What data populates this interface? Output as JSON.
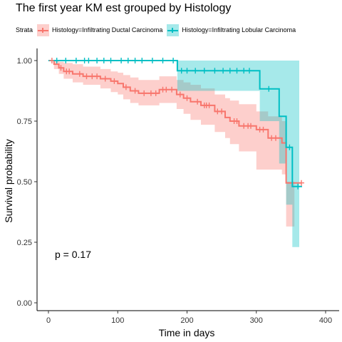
{
  "chart_data": {
    "type": "line",
    "title": "The first year KM est grouped by Histology",
    "xlabel": "Time in days",
    "ylabel": "Survival probability",
    "xlim": [
      0,
      400
    ],
    "ylim": [
      0,
      1
    ],
    "x_ticks": [
      "0",
      "100",
      "200",
      "300",
      "400"
    ],
    "y_ticks": [
      "0.00",
      "0.25",
      "0.50",
      "0.75",
      "1.00"
    ],
    "grid": false,
    "legend": {
      "title": "Strata",
      "position": "top",
      "entries": [
        "Histology=Infiltrating Ductal Carcinoma",
        "Histology=Infiltrating Lobular Carcinoma"
      ]
    },
    "annotation": "p = 0.17",
    "series": [
      {
        "name": "Histology=Infiltrating Ductal Carcinoma",
        "color": "#F8766D",
        "steps": [
          [
            0,
            1.0
          ],
          [
            8,
            0.985
          ],
          [
            15,
            0.97
          ],
          [
            22,
            0.955
          ],
          [
            35,
            0.945
          ],
          [
            50,
            0.935
          ],
          [
            75,
            0.925
          ],
          [
            90,
            0.915
          ],
          [
            100,
            0.905
          ],
          [
            108,
            0.89
          ],
          [
            118,
            0.875
          ],
          [
            130,
            0.865
          ],
          [
            160,
            0.88
          ],
          [
            185,
            0.86
          ],
          [
            195,
            0.845
          ],
          [
            205,
            0.83
          ],
          [
            220,
            0.815
          ],
          [
            240,
            0.79
          ],
          [
            255,
            0.765
          ],
          [
            262,
            0.75
          ],
          [
            275,
            0.73
          ],
          [
            300,
            0.715
          ],
          [
            317,
            0.68
          ],
          [
            337,
            0.66
          ],
          [
            343,
            0.495
          ],
          [
            365,
            0.495
          ]
        ],
        "lower": [
          [
            0,
            1.0
          ],
          [
            8,
            0.965
          ],
          [
            15,
            0.945
          ],
          [
            22,
            0.925
          ],
          [
            35,
            0.91
          ],
          [
            50,
            0.9
          ],
          [
            75,
            0.885
          ],
          [
            90,
            0.87
          ],
          [
            100,
            0.86
          ],
          [
            108,
            0.84
          ],
          [
            118,
            0.825
          ],
          [
            130,
            0.815
          ],
          [
            160,
            0.825
          ],
          [
            185,
            0.8
          ],
          [
            195,
            0.78
          ],
          [
            205,
            0.755
          ],
          [
            220,
            0.735
          ],
          [
            240,
            0.705
          ],
          [
            255,
            0.68
          ],
          [
            262,
            0.655
          ],
          [
            275,
            0.625
          ],
          [
            300,
            0.55
          ],
          [
            317,
            0.55
          ],
          [
            337,
            0.53
          ],
          [
            343,
            0.315
          ],
          [
            355,
            0.315
          ]
        ],
        "upper": [
          [
            0,
            1.0
          ],
          [
            8,
            1.0
          ],
          [
            15,
            0.995
          ],
          [
            22,
            0.99
          ],
          [
            35,
            0.985
          ],
          [
            50,
            0.975
          ],
          [
            75,
            0.965
          ],
          [
            90,
            0.955
          ],
          [
            100,
            0.95
          ],
          [
            108,
            0.94
          ],
          [
            118,
            0.93
          ],
          [
            130,
            0.92
          ],
          [
            160,
            0.935
          ],
          [
            185,
            0.92
          ],
          [
            195,
            0.91
          ],
          [
            205,
            0.9
          ],
          [
            220,
            0.885
          ],
          [
            240,
            0.86
          ],
          [
            255,
            0.845
          ],
          [
            262,
            0.835
          ],
          [
            275,
            0.82
          ],
          [
            300,
            0.79
          ],
          [
            317,
            0.77
          ],
          [
            337,
            0.75
          ],
          [
            343,
            0.5
          ],
          [
            355,
            0.5
          ]
        ],
        "censor_times": [
          5,
          18,
          26,
          30,
          45,
          55,
          63,
          70,
          82,
          95,
          112,
          125,
          138,
          148,
          155,
          165,
          170,
          178,
          190,
          200,
          215,
          225,
          228,
          232,
          244,
          250,
          268,
          272,
          282,
          288,
          292,
          305,
          310,
          322,
          328,
          365
        ]
      },
      {
        "name": "Histology=Infiltrating Lobular Carcinoma",
        "color": "#00BFC4",
        "steps": [
          [
            0,
            1.0
          ],
          [
            186,
            0.958
          ],
          [
            305,
            0.883
          ],
          [
            333,
            0.77
          ],
          [
            343,
            0.642
          ],
          [
            352,
            0.48
          ],
          [
            366,
            0.48
          ]
        ],
        "lower": [
          [
            0,
            1.0
          ],
          [
            186,
            0.875
          ],
          [
            305,
            0.75
          ],
          [
            333,
            0.575
          ],
          [
            343,
            0.405
          ],
          [
            352,
            0.23
          ],
          [
            362,
            0.23
          ]
        ],
        "upper": [
          [
            0,
            1.0
          ],
          [
            186,
            1.0
          ],
          [
            305,
            1.0
          ],
          [
            333,
            1.0
          ],
          [
            343,
            1.0
          ],
          [
            352,
            1.0
          ],
          [
            362,
            1.0
          ]
        ],
        "censor_times": [
          12,
          25,
          40,
          52,
          58,
          70,
          80,
          90,
          105,
          115,
          125,
          135,
          150,
          165,
          180,
          192,
          200,
          212,
          225,
          240,
          252,
          262,
          272,
          282,
          290,
          318,
          348,
          360
        ]
      }
    ]
  }
}
